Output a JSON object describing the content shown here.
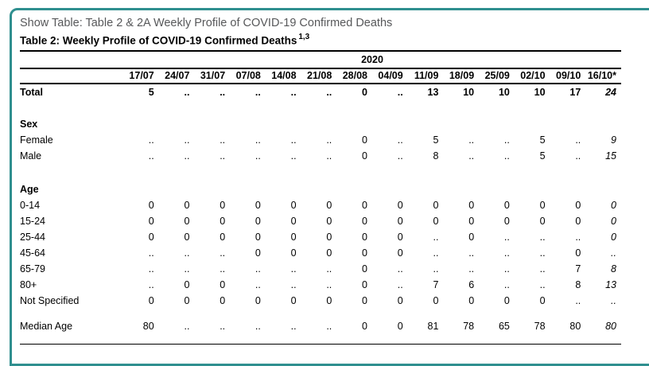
{
  "panel": {
    "border_color": "#2f8f8f",
    "show_table_label": "Show Table: Table 2 & 2A Weekly Profile of COVID-19 Confirmed Deaths",
    "show_table_text_color": "#57585a"
  },
  "table": {
    "title": "Table 2: Weekly Profile of COVID-19 Confirmed Deaths",
    "title_superscript": "1,3",
    "year_header": "2020",
    "columns": [
      "17/07",
      "24/07",
      "31/07",
      "07/08",
      "14/08",
      "21/08",
      "28/08",
      "04/09",
      "11/09",
      "18/09",
      "25/09",
      "02/10",
      "09/10",
      "16/10*"
    ],
    "rows": [
      {
        "type": "data",
        "bold": true,
        "label": "Total",
        "values": [
          "5",
          "..",
          "..",
          "..",
          "..",
          "..",
          "0",
          "..",
          "13",
          "10",
          "10",
          "10",
          "17",
          "24"
        ]
      },
      {
        "type": "spacer",
        "size": "m"
      },
      {
        "type": "section",
        "label": "Sex"
      },
      {
        "type": "data",
        "label": "Female",
        "values": [
          "..",
          "..",
          "..",
          "..",
          "..",
          "..",
          "0",
          "..",
          "5",
          "..",
          "..",
          "5",
          "..",
          "9"
        ]
      },
      {
        "type": "data",
        "label": "Male",
        "values": [
          "..",
          "..",
          "..",
          "..",
          "..",
          "..",
          "0",
          "..",
          "8",
          "..",
          "..",
          "5",
          "..",
          "15"
        ]
      },
      {
        "type": "spacer",
        "size": "l"
      },
      {
        "type": "section",
        "label": "Age"
      },
      {
        "type": "data",
        "label": "0-14",
        "values": [
          "0",
          "0",
          "0",
          "0",
          "0",
          "0",
          "0",
          "0",
          "0",
          "0",
          "0",
          "0",
          "0",
          "0"
        ]
      },
      {
        "type": "data",
        "label": "15-24",
        "values": [
          "0",
          "0",
          "0",
          "0",
          "0",
          "0",
          "0",
          "0",
          "0",
          "0",
          "0",
          "0",
          "0",
          "0"
        ]
      },
      {
        "type": "data",
        "label": "25-44",
        "values": [
          "0",
          "0",
          "0",
          "0",
          "0",
          "0",
          "0",
          "0",
          "..",
          "0",
          "..",
          "..",
          "..",
          "0"
        ]
      },
      {
        "type": "data",
        "label": "45-64",
        "values": [
          "..",
          "..",
          "..",
          "0",
          "0",
          "0",
          "0",
          "0",
          "..",
          "..",
          "..",
          "..",
          "0",
          ".."
        ]
      },
      {
        "type": "data",
        "label": "65-79",
        "values": [
          "..",
          "..",
          "..",
          "..",
          "..",
          "..",
          "0",
          "..",
          "..",
          "..",
          "..",
          "..",
          "7",
          "8"
        ]
      },
      {
        "type": "data",
        "label": "80+",
        "values": [
          "..",
          "0",
          "0",
          "..",
          "..",
          "..",
          "0",
          "..",
          "7",
          "6",
          "..",
          "..",
          "8",
          "13"
        ]
      },
      {
        "type": "data",
        "label": "Not Specified",
        "values": [
          "0",
          "0",
          "0",
          "0",
          "0",
          "0",
          "0",
          "0",
          "0",
          "0",
          "0",
          "0",
          "..",
          ".."
        ]
      },
      {
        "type": "spacer",
        "size": "s"
      },
      {
        "type": "data",
        "label": "Median Age",
        "values": [
          "80",
          "..",
          "..",
          "..",
          "..",
          "..",
          "0",
          "0",
          "81",
          "78",
          "65",
          "78",
          "80",
          "80"
        ]
      },
      {
        "type": "spacer",
        "size": "s"
      }
    ]
  }
}
